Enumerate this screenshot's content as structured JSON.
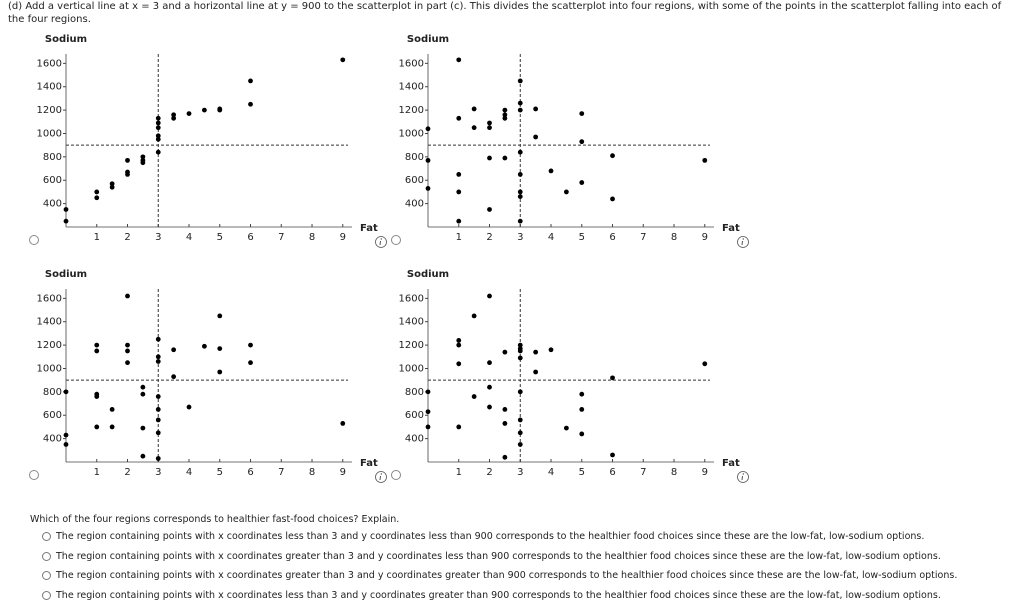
{
  "header": {
    "instruction": "(d) Add a vertical line at x = 3 and a horizontal line at y = 900 to the scatterplot in part (c). This divides the scatterplot into four regions, with some of the points in the scatterplot falling into each of the four regions."
  },
  "chart_data": [
    {
      "type": "scatter",
      "x_label": "Fat",
      "y_label": "Sodium",
      "color": "#000000",
      "xlim": [
        0,
        9.3
      ],
      "ylim": [
        200,
        1680
      ],
      "xticks": [
        1,
        2,
        3,
        4,
        5,
        6,
        7,
        8,
        9
      ],
      "yticks": [
        400,
        600,
        800,
        1000,
        1200,
        1400,
        1600
      ],
      "reference_lines": {
        "x": 3,
        "y": 900
      },
      "x": [
        0,
        0,
        1,
        1,
        1.5,
        1.5,
        2,
        2,
        2,
        2.5,
        2.5,
        2.5,
        3,
        3,
        3,
        3,
        3,
        3,
        3.5,
        3.5,
        4,
        4.5,
        5,
        5,
        6,
        6,
        9
      ],
      "values": [
        350,
        250,
        500,
        450,
        570,
        540,
        770,
        670,
        650,
        800,
        770,
        750,
        840,
        950,
        980,
        1050,
        1090,
        1130,
        1160,
        1130,
        1170,
        1200,
        1210,
        1200,
        1450,
        1250,
        1630
      ]
    },
    {
      "type": "scatter",
      "x_label": "Fat",
      "y_label": "Sodium",
      "color": "#000000",
      "xlim": [
        0,
        9.3
      ],
      "ylim": [
        200,
        1680
      ],
      "xticks": [
        1,
        2,
        3,
        4,
        5,
        6,
        7,
        8,
        9
      ],
      "yticks": [
        400,
        600,
        800,
        1000,
        1200,
        1400,
        1600
      ],
      "reference_lines": {
        "x": 3,
        "y": 900
      },
      "x": [
        0,
        0,
        0,
        1,
        1,
        1,
        1,
        1,
        1.5,
        1.5,
        2,
        2,
        2,
        2,
        2.5,
        2.5,
        2.5,
        2.5,
        3,
        3,
        3,
        3,
        3,
        3,
        3,
        3,
        3.5,
        3.5,
        4,
        4.5,
        5,
        5,
        5,
        6,
        6,
        9
      ],
      "values": [
        1040,
        770,
        530,
        1630,
        1130,
        650,
        500,
        250,
        1210,
        1050,
        1090,
        1050,
        790,
        350,
        1200,
        1160,
        1130,
        790,
        1450,
        1260,
        1200,
        840,
        650,
        500,
        460,
        250,
        1210,
        970,
        680,
        500,
        1170,
        930,
        580,
        810,
        440,
        770
      ]
    },
    {
      "type": "scatter",
      "x_label": "Fat",
      "y_label": "Sodium",
      "color": "#000000",
      "xlim": [
        0,
        9.3
      ],
      "ylim": [
        200,
        1680
      ],
      "xticks": [
        1,
        2,
        3,
        4,
        5,
        6,
        7,
        8,
        9
      ],
      "yticks": [
        400,
        600,
        800,
        1000,
        1200,
        1400,
        1600
      ],
      "reference_lines": {
        "x": 3,
        "y": 900
      },
      "x": [
        0,
        0,
        0,
        1,
        1,
        1,
        1,
        1,
        1.5,
        1.5,
        2,
        2,
        2,
        2,
        2.5,
        2.5,
        2.5,
        2.5,
        3,
        3,
        3,
        3,
        3,
        3,
        3,
        3,
        3.5,
        3.5,
        4,
        4.5,
        5,
        5,
        5,
        6,
        6,
        9
      ],
      "values": [
        800,
        430,
        350,
        1200,
        1150,
        780,
        760,
        500,
        650,
        500,
        1620,
        1200,
        1150,
        1050,
        840,
        780,
        490,
        250,
        1250,
        1100,
        1060,
        760,
        650,
        560,
        450,
        230,
        1160,
        930,
        670,
        1190,
        1450,
        1170,
        970,
        1200,
        1050,
        530
      ]
    },
    {
      "type": "scatter",
      "x_label": "Fat",
      "y_label": "Sodium",
      "color": "#000000",
      "xlim": [
        0,
        9.3
      ],
      "ylim": [
        200,
        1680
      ],
      "xticks": [
        1,
        2,
        3,
        4,
        5,
        6,
        7,
        8,
        9
      ],
      "yticks": [
        400,
        600,
        800,
        1000,
        1200,
        1400,
        1600
      ],
      "reference_lines": {
        "x": 3,
        "y": 900
      },
      "x": [
        0,
        0,
        0,
        1,
        1,
        1,
        1,
        1.5,
        1.5,
        2,
        2,
        2,
        2,
        2.5,
        2.5,
        2.5,
        2.5,
        3,
        3,
        3,
        3,
        3,
        3,
        3,
        3,
        3.5,
        3.5,
        4,
        4.5,
        5,
        5,
        5,
        6,
        6,
        9
      ],
      "values": [
        800,
        630,
        500,
        1240,
        1200,
        1040,
        500,
        1450,
        760,
        1620,
        1050,
        840,
        670,
        1140,
        650,
        530,
        240,
        1200,
        1170,
        1150,
        1090,
        800,
        560,
        450,
        350,
        1140,
        970,
        1160,
        490,
        780,
        650,
        440,
        920,
        260,
        1040
      ]
    }
  ],
  "question": {
    "prompt": "Which of the four regions corresponds to healthier fast-food choices? Explain.",
    "options": [
      "The region containing points with x coordinates less than 3 and y coordinates less than 900 corresponds to the healthier food choices since these are the low-fat, low-sodium options.",
      "The region containing points with x coordinates greater than 3 and y coordinates less than 900 corresponds to the healthier food choices since these are the low-fat, low-sodium options.",
      "The region containing points with x coordinates greater than 3 and y coordinates greater than 900 corresponds to the healthier food choices since these are the low-fat, low-sodium options.",
      "The region containing points with x coordinates less than 3 and y coordinates greater than 900 corresponds to the healthier food choices since these are the low-fat, low-sodium options."
    ]
  }
}
